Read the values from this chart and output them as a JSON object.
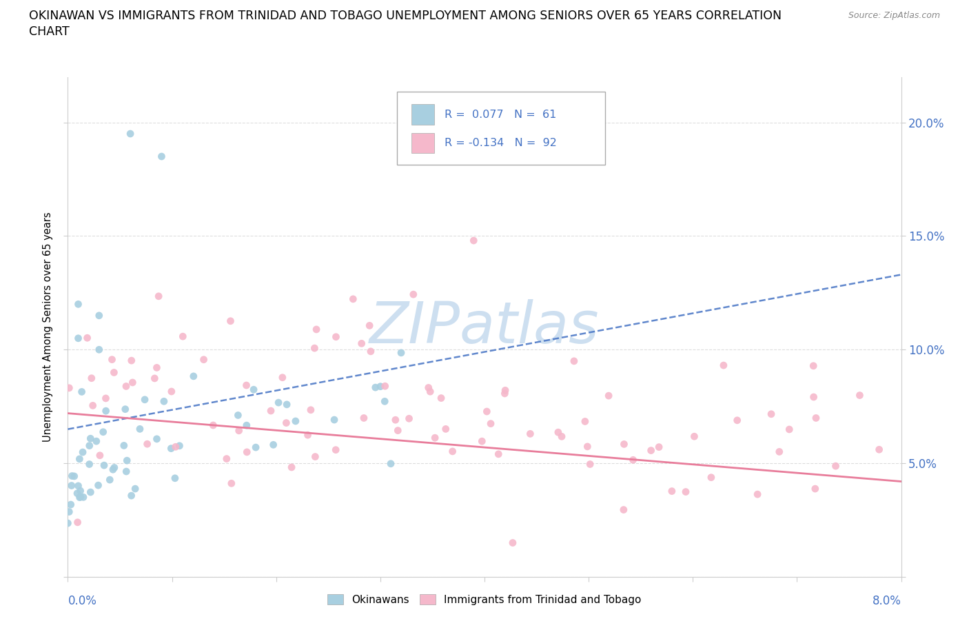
{
  "title_line1": "OKINAWAN VS IMMIGRANTS FROM TRINIDAD AND TOBAGO UNEMPLOYMENT AMONG SENIORS OVER 65 YEARS CORRELATION",
  "title_line2": "CHART",
  "source": "Source: ZipAtlas.com",
  "ylabel": "Unemployment Among Seniors over 65 years",
  "yticks": [
    0.0,
    0.05,
    0.1,
    0.15,
    0.2
  ],
  "ytick_labels": [
    "",
    "5.0%",
    "10.0%",
    "15.0%",
    "20.0%"
  ],
  "xlim": [
    0.0,
    0.08
  ],
  "ylim": [
    0.0,
    0.22
  ],
  "r1": 0.077,
  "n1": 61,
  "r2": -0.134,
  "n2": 92,
  "color1": "#a8cfe0",
  "color2": "#f5b8cb",
  "color_blue": "#4472c4",
  "color_pink": "#e87d9b",
  "color_trendblue": "#7aafd4",
  "watermark": "ZIPatlas",
  "watermark_color": "#cddff0",
  "legend1_label": "Okinawans",
  "legend2_label": "Immigrants from Trinidad and Tobago",
  "trend_ok_x0": 0.0,
  "trend_ok_y0": 0.065,
  "trend_ok_x1": 0.08,
  "trend_ok_y1": 0.133,
  "trend_tr_x0": 0.0,
  "trend_tr_y0": 0.072,
  "trend_tr_x1": 0.08,
  "trend_tr_y1": 0.042
}
